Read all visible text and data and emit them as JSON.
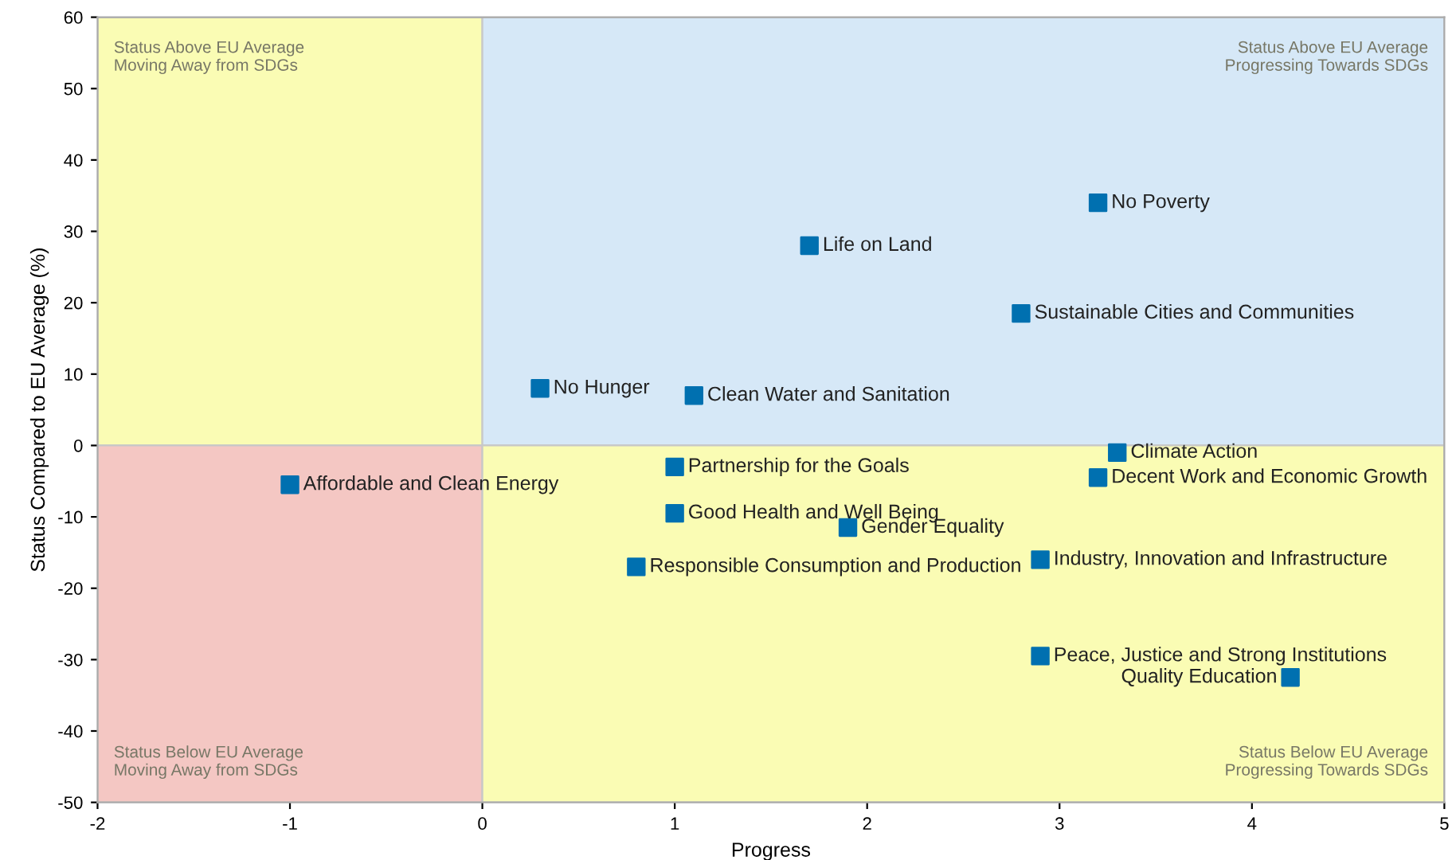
{
  "chart_data": {
    "type": "scatter",
    "xlabel": "Progress",
    "ylabel": "Status Compared to EU Average (%)",
    "x": [
      3.2,
      1.7,
      2.8,
      0.3,
      1.1,
      3.3,
      3.2,
      -1.0,
      1.0,
      1.0,
      1.9,
      0.8,
      2.9,
      2.9,
      4.2
    ],
    "series": [
      {
        "color": "#0070b0",
        "values": [
          34,
          28,
          18.5,
          8,
          7,
          -1,
          -4.5,
          -5.5,
          -3,
          -9.5,
          -11.5,
          -17,
          -16,
          -29.5,
          -32.5
        ]
      }
    ],
    "annotations": [
      {
        "text": "No Poverty",
        "x": 3.2,
        "y": 34
      },
      {
        "text": "Life on Land",
        "x": 1.7,
        "y": 28
      },
      {
        "text": "Sustainable Cities and Communities",
        "x": 2.8,
        "y": 18.5
      },
      {
        "text": "No Hunger",
        "x": 0.3,
        "y": 8
      },
      {
        "text": "Clean Water and Sanitation",
        "x": 1.1,
        "y": 7
      },
      {
        "text": "Climate Action",
        "x": 3.3,
        "y": -1
      },
      {
        "text": "Decent Work and Economic Growth",
        "x": 3.2,
        "y": -4.5
      },
      {
        "text": "Affordable and Clean Energy",
        "x": -1.0,
        "y": -5.5
      },
      {
        "text": "Partnership for the Goals",
        "x": 1.0,
        "y": -3
      },
      {
        "text": "Good Health and Well Being",
        "x": 1.0,
        "y": -9.5
      },
      {
        "text": "Gender Equality",
        "x": 1.9,
        "y": -11.5
      },
      {
        "text": "Responsible Consumption and Production",
        "x": 0.8,
        "y": -17
      },
      {
        "text": "Industry, Innovation and Infrastructure",
        "x": 2.9,
        "y": -16
      },
      {
        "text": "Peace, Justice and Strong Institutions",
        "x": 2.9,
        "y": -29.5
      },
      {
        "text": "Quality Education",
        "x": 4.2,
        "y": -32.5
      },
      "Status Above EU Average\nMoving Away from SDGs",
      "Status Above EU Average\nProgressing Towards SDGs",
      "Status Below EU Average\nMoving Away from SDGs",
      "Status Below EU Average\nProgressing Towards SDGs"
    ],
    "xlim": [
      -2,
      5
    ],
    "ylim": [
      -50,
      60
    ],
    "xticks": [
      -2,
      -1,
      0,
      1,
      2,
      3,
      4,
      5
    ],
    "yticks": [
      -50,
      -40,
      -30,
      -20,
      -10,
      0,
      10,
      20,
      30,
      40,
      50,
      60
    ],
    "marker": "square",
    "grid": false,
    "legend": false
  }
}
